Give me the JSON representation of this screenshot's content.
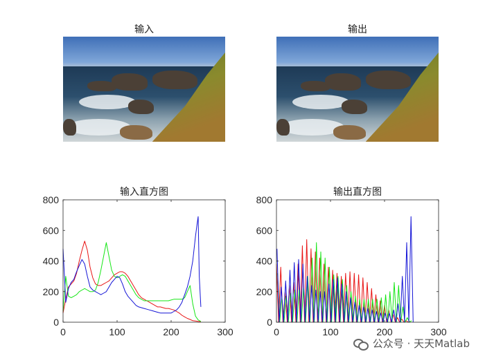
{
  "panels": {
    "input_image_title": "输入",
    "output_image_title": "输出"
  },
  "watermark": {
    "text": "公众号 · 天天Matlab",
    "icon": "wechat-icon"
  },
  "colors": {
    "red": "#e81414",
    "green": "#15e615",
    "blue": "#1414d6",
    "axis": "#262626"
  },
  "chart_data": [
    {
      "type": "line",
      "title": "输入直方图",
      "xlabel": "",
      "ylabel": "",
      "xlim": [
        0,
        300
      ],
      "ylim": [
        0,
        800
      ],
      "xticks": [
        0,
        100,
        200,
        300
      ],
      "yticks": [
        0,
        200,
        400,
        600,
        800
      ],
      "grid": false,
      "series": [
        {
          "color": "red",
          "x": [
            0,
            5,
            10,
            15,
            20,
            25,
            30,
            35,
            40,
            45,
            50,
            55,
            60,
            65,
            70,
            75,
            80,
            85,
            90,
            95,
            100,
            105,
            110,
            115,
            120,
            125,
            130,
            135,
            140,
            145,
            150,
            155,
            160,
            165,
            170,
            175,
            180,
            185,
            190,
            195,
            200,
            205,
            210,
            215,
            220,
            225,
            230,
            235,
            240,
            245,
            250,
            255
          ],
          "values": [
            60,
            150,
            230,
            250,
            270,
            320,
            400,
            470,
            530,
            470,
            360,
            290,
            250,
            240,
            240,
            250,
            260,
            270,
            290,
            310,
            320,
            330,
            330,
            320,
            300,
            270,
            240,
            210,
            180,
            160,
            150,
            140,
            130,
            120,
            110,
            100,
            100,
            95,
            90,
            90,
            85,
            80,
            70,
            60,
            45,
            35,
            25,
            18,
            10,
            8,
            5,
            3
          ]
        },
        {
          "color": "green",
          "x": [
            0,
            5,
            10,
            15,
            20,
            25,
            30,
            35,
            40,
            45,
            50,
            55,
            60,
            65,
            70,
            75,
            80,
            85,
            90,
            95,
            100,
            105,
            110,
            115,
            120,
            125,
            130,
            135,
            140,
            145,
            150,
            155,
            160,
            165,
            170,
            175,
            180,
            185,
            190,
            195,
            200,
            205,
            210,
            215,
            220,
            225,
            230,
            235,
            240,
            245,
            250,
            255
          ],
          "values": [
            70,
            300,
            170,
            160,
            170,
            180,
            200,
            210,
            220,
            210,
            200,
            200,
            210,
            260,
            340,
            430,
            520,
            430,
            340,
            300,
            290,
            300,
            310,
            300,
            270,
            240,
            210,
            180,
            160,
            150,
            140,
            140,
            140,
            140,
            140,
            140,
            140,
            140,
            140,
            140,
            145,
            150,
            150,
            150,
            150,
            160,
            200,
            240,
            120,
            40,
            15,
            5
          ]
        },
        {
          "color": "blue",
          "x": [
            0,
            5,
            10,
            15,
            20,
            25,
            30,
            35,
            40,
            45,
            50,
            55,
            60,
            65,
            70,
            75,
            80,
            85,
            90,
            95,
            100,
            105,
            110,
            115,
            120,
            125,
            130,
            135,
            140,
            145,
            150,
            155,
            160,
            165,
            170,
            175,
            180,
            185,
            190,
            195,
            200,
            205,
            210,
            215,
            220,
            225,
            230,
            235,
            240,
            245,
            248,
            250,
            252,
            255
          ],
          "values": [
            480,
            130,
            220,
            260,
            280,
            330,
            370,
            410,
            380,
            300,
            230,
            210,
            200,
            190,
            180,
            190,
            200,
            230,
            260,
            280,
            300,
            290,
            250,
            200,
            170,
            150,
            130,
            110,
            100,
            95,
            90,
            85,
            80,
            75,
            70,
            65,
            60,
            60,
            60,
            60,
            60,
            70,
            80,
            100,
            130,
            180,
            230,
            300,
            400,
            560,
            640,
            690,
            300,
            100
          ]
        }
      ]
    },
    {
      "type": "line",
      "title": "输出直方图",
      "xlabel": "",
      "ylabel": "",
      "xlim": [
        0,
        300
      ],
      "ylim": [
        0,
        800
      ],
      "xticks": [
        0,
        100,
        200,
        300
      ],
      "yticks": [
        0,
        200,
        400,
        600,
        800
      ],
      "grid": false,
      "series": [
        {
          "color": "red",
          "x": [
            0,
            4,
            8,
            12,
            16,
            20,
            24,
            28,
            32,
            36,
            40,
            44,
            48,
            52,
            56,
            60,
            64,
            68,
            72,
            76,
            80,
            84,
            88,
            92,
            96,
            100,
            104,
            108,
            112,
            116,
            120,
            124,
            128,
            132,
            136,
            140,
            144,
            148,
            152,
            156,
            160,
            164,
            168,
            172,
            176,
            180,
            184,
            188,
            192,
            196,
            200,
            204,
            208,
            212,
            216,
            220,
            224,
            228,
            232,
            236,
            240,
            244,
            248
          ],
          "values": [
            380,
            0,
            360,
            0,
            200,
            0,
            240,
            0,
            260,
            0,
            380,
            0,
            500,
            0,
            540,
            0,
            480,
            0,
            460,
            0,
            420,
            0,
            380,
            0,
            360,
            0,
            340,
            0,
            320,
            0,
            300,
            0,
            320,
            0,
            330,
            0,
            320,
            0,
            310,
            0,
            290,
            0,
            260,
            0,
            220,
            0,
            180,
            0,
            140,
            0,
            110,
            0,
            80,
            0,
            50,
            0,
            30,
            0,
            20,
            0,
            10,
            0,
            5
          ]
        },
        {
          "color": "green",
          "x": [
            2,
            6,
            10,
            14,
            18,
            22,
            26,
            30,
            34,
            38,
            42,
            46,
            50,
            54,
            58,
            62,
            66,
            70,
            74,
            78,
            82,
            86,
            90,
            94,
            98,
            102,
            106,
            110,
            114,
            118,
            122,
            126,
            130,
            134,
            138,
            142,
            146,
            150,
            154,
            158,
            162,
            166,
            170,
            174,
            178,
            182,
            186,
            190,
            194,
            198,
            202,
            206,
            210,
            214,
            218,
            222,
            226,
            230,
            234,
            238,
            242,
            246,
            250
          ],
          "values": [
            320,
            0,
            160,
            0,
            170,
            0,
            190,
            0,
            210,
            0,
            210,
            0,
            220,
            0,
            300,
            0,
            420,
            0,
            520,
            0,
            460,
            0,
            420,
            0,
            360,
            0,
            310,
            0,
            300,
            0,
            280,
            0,
            240,
            0,
            200,
            0,
            170,
            0,
            150,
            0,
            150,
            0,
            150,
            0,
            150,
            0,
            150,
            0,
            160,
            0,
            180,
            0,
            200,
            0,
            260,
            0,
            240,
            0,
            100,
            0,
            30,
            0,
            10
          ]
        },
        {
          "color": "blue",
          "x": [
            1,
            5,
            9,
            13,
            17,
            21,
            25,
            29,
            33,
            37,
            41,
            45,
            49,
            53,
            57,
            61,
            65,
            69,
            73,
            77,
            81,
            85,
            89,
            93,
            97,
            101,
            105,
            109,
            113,
            117,
            121,
            125,
            129,
            133,
            137,
            141,
            145,
            149,
            153,
            157,
            161,
            165,
            169,
            173,
            177,
            181,
            185,
            189,
            193,
            197,
            201,
            205,
            209,
            213,
            217,
            221,
            225,
            229,
            233,
            237,
            241,
            245,
            249,
            253
          ],
          "values": [
            480,
            0,
            230,
            0,
            270,
            0,
            340,
            0,
            390,
            0,
            410,
            0,
            380,
            0,
            300,
            0,
            240,
            0,
            210,
            0,
            200,
            0,
            200,
            0,
            250,
            0,
            280,
            0,
            290,
            0,
            250,
            0,
            200,
            0,
            160,
            0,
            130,
            0,
            110,
            0,
            100,
            0,
            90,
            0,
            80,
            0,
            70,
            0,
            60,
            0,
            60,
            0,
            60,
            0,
            80,
            0,
            120,
            0,
            300,
            0,
            520,
            0,
            690,
            0
          ]
        }
      ]
    }
  ]
}
